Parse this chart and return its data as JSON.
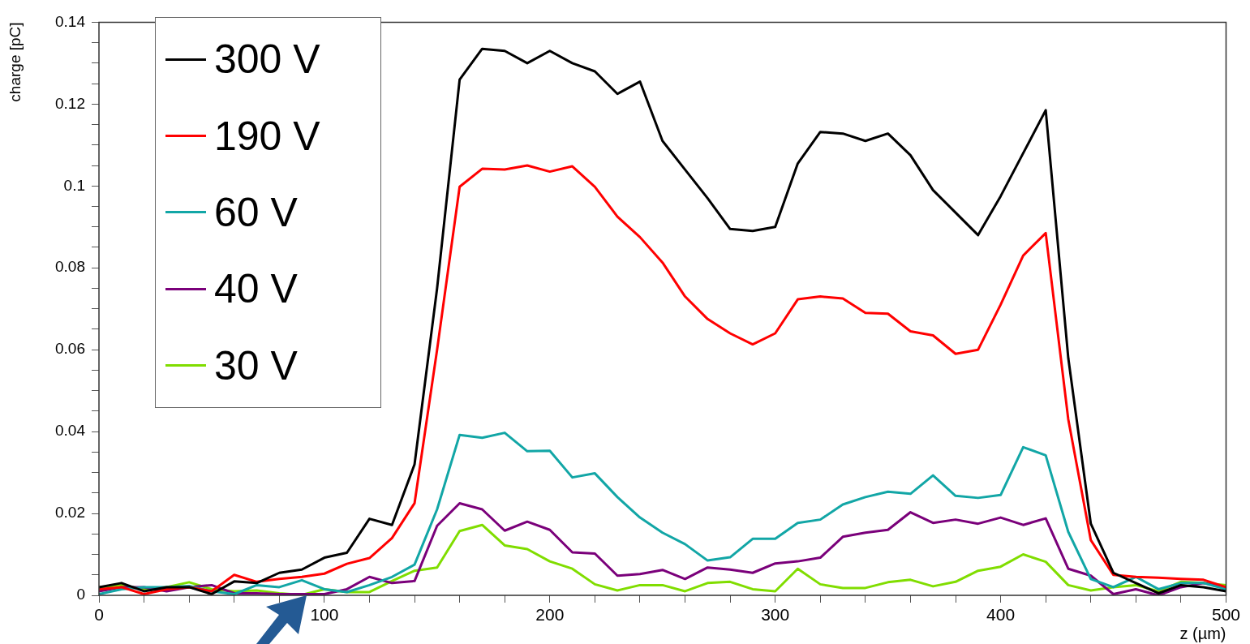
{
  "chart_data": {
    "type": "line",
    "xlabel": "z (µm)",
    "ylabel": "charge [pC]",
    "x": [
      0,
      10,
      20,
      30,
      40,
      50,
      60,
      70,
      80,
      90,
      100,
      110,
      120,
      130,
      140,
      150,
      160,
      170,
      180,
      190,
      200,
      210,
      220,
      230,
      240,
      250,
      260,
      270,
      280,
      290,
      300,
      310,
      320,
      330,
      340,
      350,
      360,
      370,
      380,
      390,
      400,
      410,
      420,
      430,
      440,
      450,
      460,
      470,
      480,
      490,
      500
    ],
    "series": [
      {
        "name": "300 V",
        "color": "#000000",
        "values": [
          0.002,
          0.003,
          0.001,
          0.002,
          0.002,
          0.0003,
          0.0034,
          0.003,
          0.0055,
          0.0063,
          0.0092,
          0.0104,
          0.0187,
          0.0172,
          0.032,
          0.075,
          0.126,
          0.1335,
          0.133,
          0.13,
          0.133,
          0.13,
          0.128,
          0.1225,
          0.1255,
          0.111,
          0.104,
          0.097,
          0.0895,
          0.089,
          0.09,
          0.1055,
          0.1132,
          0.1128,
          0.111,
          0.1128,
          0.1075,
          0.099,
          0.0935,
          0.088,
          0.0975,
          0.108,
          0.1185,
          0.058,
          0.0175,
          0.0055,
          0.003,
          0.0005,
          0.0025,
          0.002,
          0.001
        ]
      },
      {
        "name": "190 V",
        "color": "#ff0000",
        "values": [
          0.0015,
          0.002,
          0.0003,
          0.0015,
          0.002,
          0.001,
          0.005,
          0.0033,
          0.004,
          0.0045,
          0.0053,
          0.0077,
          0.0091,
          0.014,
          0.0225,
          0.06,
          0.0998,
          0.1042,
          0.104,
          0.105,
          0.1035,
          0.1048,
          0.0998,
          0.0925,
          0.0875,
          0.0813,
          0.073,
          0.0675,
          0.064,
          0.0613,
          0.064,
          0.0723,
          0.073,
          0.0725,
          0.069,
          0.0688,
          0.0645,
          0.0635,
          0.059,
          0.06,
          0.071,
          0.083,
          0.0885,
          0.043,
          0.0135,
          0.005,
          0.0045,
          0.0043,
          0.004,
          0.0038,
          0.002
        ]
      },
      {
        "name": "60 V",
        "color": "#12a6a6",
        "values": [
          0.0003,
          0.0015,
          0.002,
          0.002,
          0.0023,
          0.001,
          0.0003,
          0.0025,
          0.002,
          0.0037,
          0.0015,
          0.0008,
          0.0025,
          0.0045,
          0.0075,
          0.021,
          0.0392,
          0.0385,
          0.0397,
          0.0352,
          0.0353,
          0.0288,
          0.0298,
          0.024,
          0.019,
          0.0153,
          0.0125,
          0.0085,
          0.0093,
          0.0138,
          0.0138,
          0.0177,
          0.0185,
          0.0222,
          0.024,
          0.0253,
          0.0248,
          0.0293,
          0.0243,
          0.0238,
          0.0245,
          0.0362,
          0.0342,
          0.0155,
          0.004,
          0.002,
          0.0045,
          0.0015,
          0.003,
          0.003,
          0.0015
        ]
      },
      {
        "name": "40 V",
        "color": "#7a007a",
        "values": [
          0.001,
          0.002,
          0.002,
          0.001,
          0.002,
          0.0025,
          0.0005,
          0.0005,
          0.0003,
          0.0003,
          0.0003,
          0.0015,
          0.0045,
          0.003,
          0.0035,
          0.017,
          0.0225,
          0.021,
          0.0158,
          0.018,
          0.016,
          0.0105,
          0.0102,
          0.0048,
          0.0052,
          0.0062,
          0.004,
          0.0068,
          0.0063,
          0.0055,
          0.0078,
          0.0083,
          0.0092,
          0.0143,
          0.0153,
          0.016,
          0.0203,
          0.0177,
          0.0185,
          0.0175,
          0.019,
          0.0172,
          0.0188,
          0.0065,
          0.0048,
          0.0003,
          0.0015,
          0,
          0.002,
          0.003,
          0.002
        ]
      },
      {
        "name": "30 V",
        "color": "#80dd00",
        "values": [
          0.002,
          0.0025,
          0.0015,
          0.002,
          0.0032,
          0.0015,
          0.001,
          0.0012,
          0.0005,
          0.0001,
          0.0015,
          0.0008,
          0.0008,
          0.0035,
          0.006,
          0.0068,
          0.0157,
          0.0172,
          0.0122,
          0.0113,
          0.0083,
          0.0065,
          0.0027,
          0.0012,
          0.0025,
          0.0025,
          0.001,
          0.003,
          0.0033,
          0.0015,
          0.001,
          0.0065,
          0.0027,
          0.0018,
          0.0018,
          0.0032,
          0.0038,
          0.0022,
          0.0033,
          0.006,
          0.007,
          0.01,
          0.0082,
          0.0025,
          0.0012,
          0.002,
          0.0025,
          0.001,
          0.0033,
          0.003,
          0.0025
        ]
      }
    ],
    "xlim": [
      0,
      500
    ],
    "xticks": [
      0,
      {
        "value": 20,
        "label": null
      },
      {
        "value": 40,
        "label": null
      },
      {
        "value": 60,
        "label": null
      },
      {
        "value": 80,
        "label": null
      },
      100,
      {
        "value": 120,
        "label": null
      },
      {
        "value": 140,
        "label": null
      },
      {
        "value": 160,
        "label": null
      },
      {
        "value": 180,
        "label": null
      },
      200,
      {
        "value": 220,
        "label": null
      },
      {
        "value": 240,
        "label": null
      },
      {
        "value": 260,
        "label": null
      },
      {
        "value": 280,
        "label": null
      },
      300,
      {
        "value": 320,
        "label": null
      },
      {
        "value": 340,
        "label": null
      },
      {
        "value": 360,
        "label": null
      },
      {
        "value": 380,
        "label": null
      },
      400,
      {
        "value": 420,
        "label": null
      },
      {
        "value": 440,
        "label": null
      },
      {
        "value": 460,
        "label": null
      },
      {
        "value": 480,
        "label": null
      },
      500
    ],
    "ylim": [
      0,
      0.14
    ],
    "yticks": [
      0,
      {
        "value": 0.005,
        "label": null
      },
      {
        "value": 0.01,
        "label": null
      },
      {
        "value": 0.015,
        "label": null
      },
      0.02,
      {
        "value": 0.025,
        "label": null
      },
      {
        "value": 0.03,
        "label": null
      },
      {
        "value": 0.035,
        "label": null
      },
      0.04,
      {
        "value": 0.045,
        "label": null
      },
      {
        "value": 0.05,
        "label": null
      },
      {
        "value": 0.055,
        "label": null
      },
      0.06,
      {
        "value": 0.065,
        "label": null
      },
      {
        "value": 0.07,
        "label": null
      },
      {
        "value": 0.075,
        "label": null
      },
      0.08,
      {
        "value": 0.085,
        "label": null
      },
      {
        "value": 0.09,
        "label": null
      },
      {
        "value": 0.095,
        "label": null
      },
      0.1,
      {
        "value": 0.105,
        "label": null
      },
      {
        "value": 0.11,
        "label": null
      },
      {
        "value": 0.115,
        "label": null
      },
      0.12,
      {
        "value": 0.125,
        "label": null
      },
      {
        "value": 0.13,
        "label": null
      },
      {
        "value": 0.135,
        "label": null
      },
      0.14
    ],
    "legend": "top left",
    "grid": false,
    "marker": "none",
    "line_style": "solid"
  }
}
